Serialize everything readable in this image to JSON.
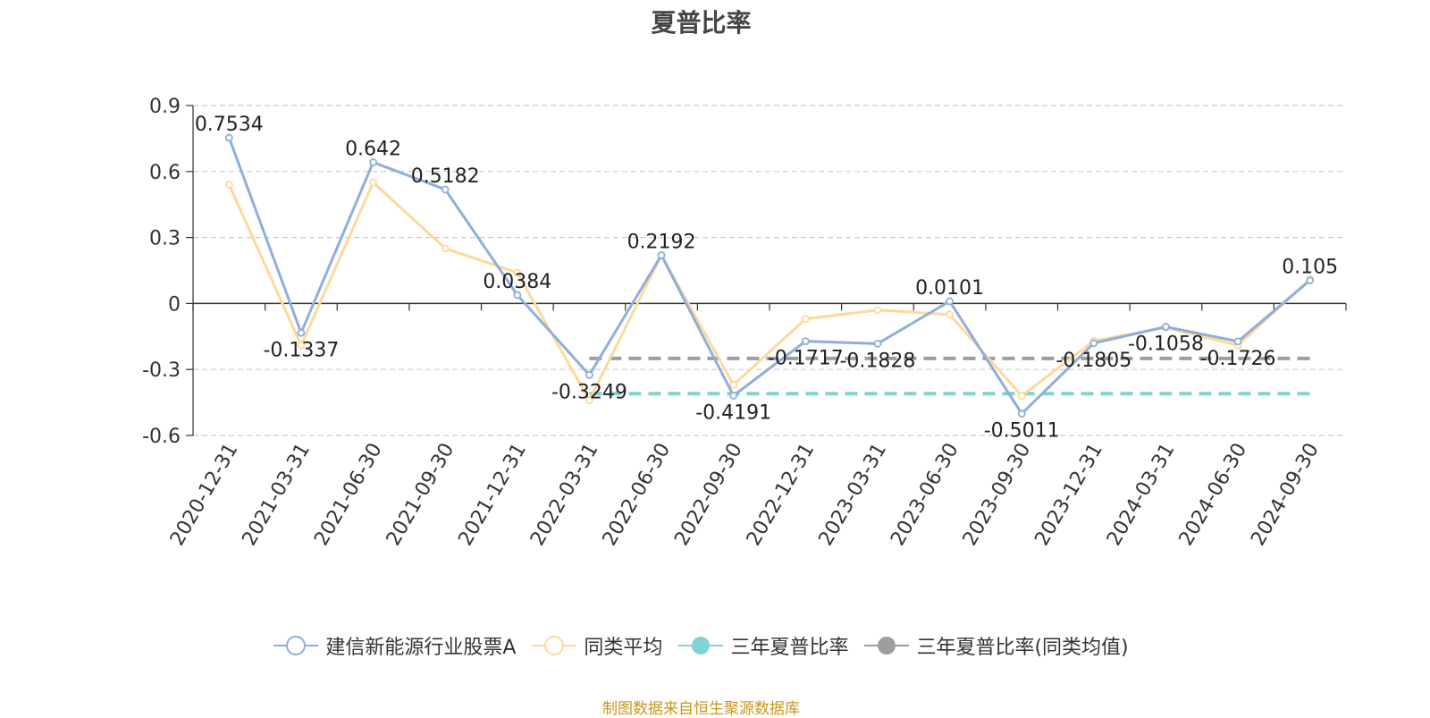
{
  "title": "夏普比率",
  "source_note": "制图数据来自恒生聚源数据库",
  "colors": {
    "fund": "#8eaedb",
    "peer": "#fdd99a",
    "three_year": "#7fd4d4",
    "three_year_peer": "#9e9e9e",
    "grid": "#cccccc",
    "axis": "#333333"
  },
  "legend": [
    {
      "label": "建信新能源行业股票A",
      "color": "#8eaedb",
      "filled": false
    },
    {
      "label": "同类平均",
      "color": "#fdd99a",
      "filled": false
    },
    {
      "label": "三年夏普比率",
      "color": "#7fd4d4",
      "filled": true
    },
    {
      "label": "三年夏普比率(同类均值)",
      "color": "#9e9e9e",
      "filled": true
    }
  ],
  "chart_data": {
    "type": "line",
    "title": "夏普比率",
    "categories": [
      "2020-12-31",
      "2021-03-31",
      "2021-06-30",
      "2021-09-30",
      "2021-12-31",
      "2022-03-31",
      "2022-06-30",
      "2022-09-30",
      "2022-12-31",
      "2023-03-31",
      "2023-06-30",
      "2023-09-30",
      "2023-12-31",
      "2024-03-31",
      "2024-06-30",
      "2024-09-30"
    ],
    "y_ticks": [
      "0.9",
      "0.6",
      "0.3",
      "0",
      "-0.3",
      "-0.6"
    ],
    "ylim": [
      -0.6,
      0.9
    ],
    "grid": true,
    "legend_position": "bottom",
    "series": [
      {
        "name": "建信新能源行业股票A",
        "values": [
          0.7534,
          -0.1337,
          0.642,
          0.5182,
          0.0384,
          -0.3249,
          0.2192,
          -0.4191,
          -0.1717,
          -0.1828,
          0.0101,
          -0.5011,
          -0.1805,
          -0.1058,
          -0.1726,
          0.105
        ],
        "labels": [
          "0.7534",
          "-0.1337",
          "0.642",
          "0.5182",
          "0.0384",
          "-0.3249",
          "0.2192",
          "-0.4191",
          "-0.1717",
          "-0.1828",
          "0.0101",
          "-0.5011",
          "-0.1805",
          "-0.1058",
          "-0.1726",
          "0.105"
        ]
      },
      {
        "name": "同类平均",
        "values": [
          0.54,
          -0.19,
          0.55,
          0.25,
          0.14,
          -0.44,
          0.22,
          -0.37,
          -0.07,
          -0.03,
          -0.05,
          -0.42,
          -0.17,
          -0.11,
          -0.19,
          0.11
        ]
      }
    ],
    "reference_lines": [
      {
        "name": "三年夏普比率",
        "value": -0.41,
        "from": "2022-03-31",
        "to": "2024-09-30"
      },
      {
        "name": "三年夏普比率(同类均值)",
        "value": -0.25,
        "from": "2022-03-31",
        "to": "2024-09-30"
      }
    ]
  }
}
